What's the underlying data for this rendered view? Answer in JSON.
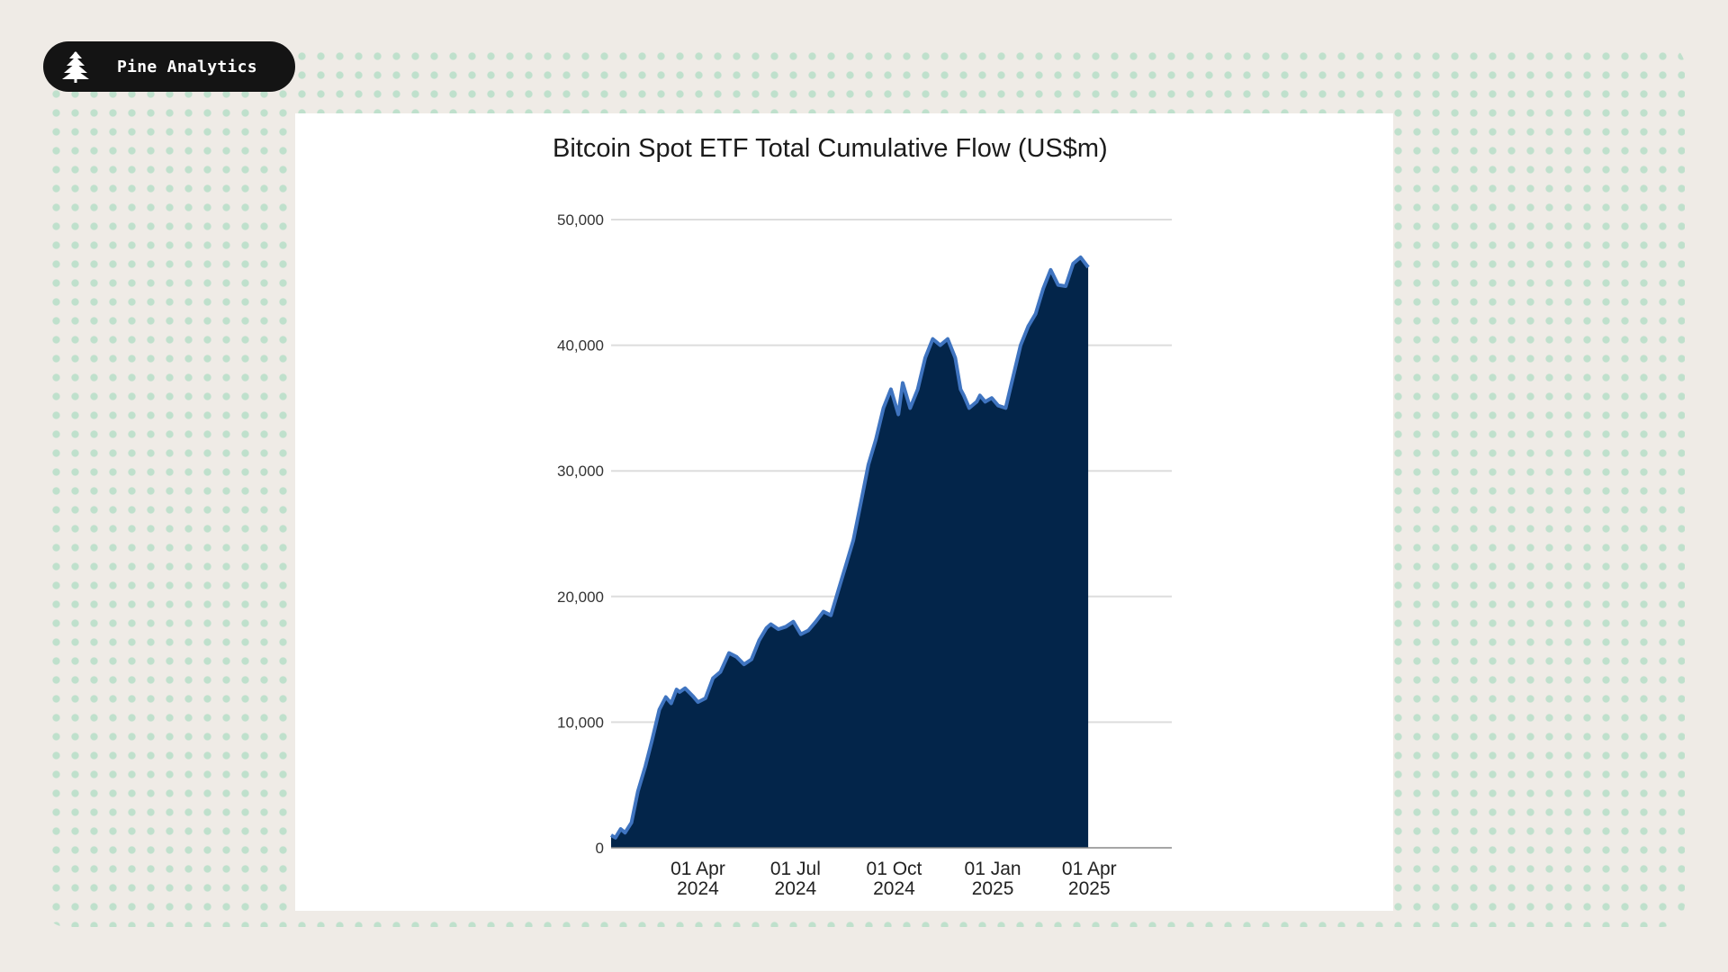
{
  "brand": {
    "name": "Pine Analytics",
    "icon": "pine-tree-icon"
  },
  "colors": {
    "page_background": "#efebe6",
    "dot_pattern": "#bfe0cc",
    "brand_pill": "#141414",
    "area_fill": "#03254a",
    "line": "#3f74c0",
    "gridline": "#dddddd"
  },
  "chart_data": {
    "type": "area",
    "title": "Bitcoin Spot ETF Total Cumulative Flow (US$m)",
    "xlabel": "",
    "ylabel": "",
    "ylim": [
      0,
      50000
    ],
    "grid": true,
    "y_ticks": [
      "50,000",
      "40,000",
      "30,000",
      "20,000",
      "10,000",
      "0"
    ],
    "x_tick_labels": [
      {
        "date": "2024-04-01",
        "line1": "01 Apr",
        "line2": "2024"
      },
      {
        "date": "2024-07-01",
        "line1": "01 Jul",
        "line2": "2024"
      },
      {
        "date": "2024-10-01",
        "line1": "01 Oct",
        "line2": "2024"
      },
      {
        "date": "2025-01-01",
        "line1": "01 Jan",
        "line2": "2025"
      },
      {
        "date": "2025-04-01",
        "line1": "01 Apr",
        "line2": "2025"
      }
    ],
    "series": [
      {
        "x": [
          "2024-01-11",
          "2024-01-15",
          "2024-01-20",
          "2024-01-24",
          "2024-01-30",
          "2024-02-05",
          "2024-02-12",
          "2024-02-18",
          "2024-02-25",
          "2024-03-02",
          "2024-03-07",
          "2024-03-12",
          "2024-03-15",
          "2024-03-20",
          "2024-03-27",
          "2024-04-01",
          "2024-04-08",
          "2024-04-15",
          "2024-04-22",
          "2024-04-30",
          "2024-05-07",
          "2024-05-14",
          "2024-05-21",
          "2024-05-28",
          "2024-06-04",
          "2024-06-08",
          "2024-06-15",
          "2024-06-22",
          "2024-06-29",
          "2024-07-06",
          "2024-07-13",
          "2024-07-20",
          "2024-07-27",
          "2024-08-03",
          "2024-08-10",
          "2024-08-17",
          "2024-08-24",
          "2024-08-31",
          "2024-09-07",
          "2024-09-14",
          "2024-09-21",
          "2024-09-28",
          "2024-10-05",
          "2024-10-09",
          "2024-10-16",
          "2024-10-23",
          "2024-10-30",
          "2024-11-06",
          "2024-11-13",
          "2024-11-20",
          "2024-11-27",
          "2024-12-02",
          "2024-12-05",
          "2024-12-10",
          "2024-12-17",
          "2024-12-20",
          "2024-12-25",
          "2024-12-31",
          "2025-01-06",
          "2025-01-13",
          "2025-01-20",
          "2025-01-27",
          "2025-02-03",
          "2025-02-10",
          "2025-02-17",
          "2025-02-24",
          "2025-03-03",
          "2025-03-10",
          "2025-03-17",
          "2025-03-24",
          "2025-03-31",
          "2025-04-07",
          "2025-04-14",
          "2025-04-21",
          "2025-04-28",
          "2025-05-05",
          "2025-05-12",
          "2025-05-19",
          "2025-05-23",
          "2025-05-28",
          "2025-06-03",
          "2025-06-09",
          "2025-06-16"
        ],
        "values": [
          1000,
          800,
          1500,
          1200,
          2000,
          4500,
          6500,
          8500,
          11000,
          12000,
          11500,
          12600,
          12400,
          12700,
          12100,
          11600,
          11900,
          13500,
          14000,
          15500,
          15200,
          14600,
          15000,
          16500,
          17500,
          17800,
          17400,
          17600,
          18000,
          17000,
          17300,
          18000,
          18800,
          18500,
          20500,
          22500,
          24500,
          27500,
          30500,
          32500,
          35000,
          36500,
          34500,
          37000,
          35000,
          36500,
          39000,
          40500,
          40000,
          40500,
          39000,
          36500,
          36000,
          35000,
          35500,
          36000,
          35500,
          35800,
          35200,
          35000,
          37500,
          40000,
          41500,
          42500,
          44500,
          46000,
          44800,
          44700,
          46500,
          47000,
          46200,
          0,
          0,
          0,
          0,
          0,
          0,
          0,
          0,
          0,
          0,
          0,
          0
        ],
        "name": ""
      }
    ]
  }
}
